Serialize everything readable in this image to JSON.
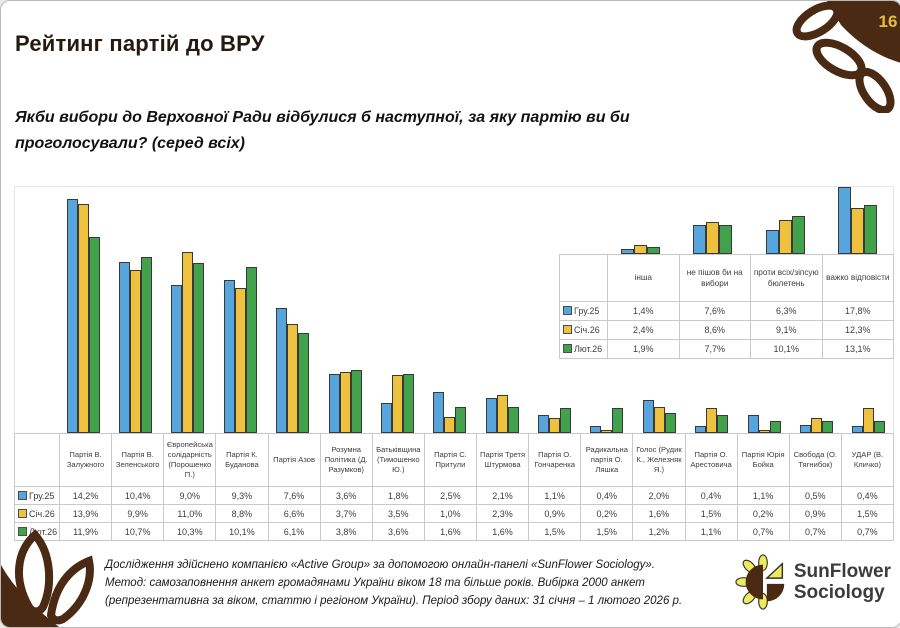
{
  "page": {
    "number": "16"
  },
  "header": {
    "title": "Рейтинг партій до ВРУ",
    "subtitle_line1": "Якби вибори до Верховної Ради відбулися б наступної, за яку партію ви би",
    "subtitle_line2": "проголосували? (серед всіх)"
  },
  "colors": {
    "bar_blue": "#56a5dc",
    "bar_yellow": "#eec23f",
    "bar_green": "#42a14b",
    "bar_outline": "#39393b",
    "brand_brown": "#4a2a13",
    "page_number_gold": "#e3bf3e",
    "logo_petal_yellow": "#eeea5e"
  },
  "chart_data": [
    {
      "type": "bar",
      "name": "party-ratings-main",
      "title": "",
      "xlabel": "",
      "ylabel": "",
      "ylim": [
        0,
        15
      ],
      "grid": false,
      "legend_position": "table-rows-left",
      "value_suffix": "%",
      "decimal_separator": ",",
      "categories": [
        "Партія В. Залужного",
        "Партія В. Зеленського",
        "Європейська солідарність (Порошенко П.)",
        "Партія К. Буданова",
        "Партія Азов",
        "Розумна Політика (Д. Разумков)",
        "Батьківщина (Тимошенко Ю.)",
        "Партія С. Притули",
        "Партія Третя Штурмова",
        "Партія О. Гончаренка",
        "Радикальна партія О. Ляшка",
        "Голос (Рудик К., Железняк Я.)",
        "Партія О. Арестовича",
        "Партія Юрія Бойка",
        "Свобода (О. Тягнибок)",
        "УДАР (В. Кличко)"
      ],
      "series": [
        {
          "name": "Гру.25",
          "color": "#56a5dc",
          "values": [
            14.2,
            10.4,
            9.0,
            9.3,
            7.6,
            3.6,
            1.8,
            2.5,
            2.1,
            1.1,
            0.4,
            2.0,
            0.4,
            1.1,
            0.5,
            0.4
          ]
        },
        {
          "name": "Січ.26",
          "color": "#eec23f",
          "values": [
            13.9,
            9.9,
            11.0,
            8.8,
            6.6,
            3.7,
            3.5,
            1.0,
            2.3,
            0.9,
            0.2,
            1.6,
            1.5,
            0.2,
            0.9,
            1.5
          ]
        },
        {
          "name": "Лют.26",
          "color": "#42a14b",
          "values": [
            11.9,
            10.7,
            10.3,
            10.1,
            6.1,
            3.8,
            3.6,
            1.6,
            1.6,
            1.5,
            1.5,
            1.2,
            1.1,
            0.7,
            0.7,
            0.7
          ]
        }
      ]
    },
    {
      "type": "bar",
      "name": "party-ratings-other-answers",
      "title": "",
      "xlabel": "",
      "ylabel": "",
      "ylim": [
        0,
        18
      ],
      "grid": false,
      "legend_position": "table-rows-left",
      "value_suffix": "%",
      "decimal_separator": ",",
      "categories": [
        "інша",
        "не пішов би на вибори",
        "проти всіх/зіпсую бюлетень",
        "важко відповісти"
      ],
      "series": [
        {
          "name": "Гру.25",
          "color": "#56a5dc",
          "values": [
            1.4,
            7.6,
            6.3,
            17.8
          ]
        },
        {
          "name": "Січ.26",
          "color": "#eec23f",
          "values": [
            2.4,
            8.6,
            9.1,
            12.3
          ]
        },
        {
          "name": "Лют.26",
          "color": "#42a14b",
          "values": [
            1.9,
            7.7,
            10.1,
            13.1
          ]
        }
      ]
    }
  ],
  "footer": {
    "text_lines": [
      "Дослідження здійснено компанією «Active Group» за допомогою онлайн-панелі «SunFlower Sociology».",
      "Метод: самозаповнення анкет громадянами України віком 18 та більше років. Вибірка 2000 анкет",
      "(репрезентативна за віком, статтю і регіоном України). Період збору даних: 31 січня – 1 лютого 2026 р."
    ],
    "logo_line1": "SunFlower",
    "logo_line2": "Sociology"
  }
}
